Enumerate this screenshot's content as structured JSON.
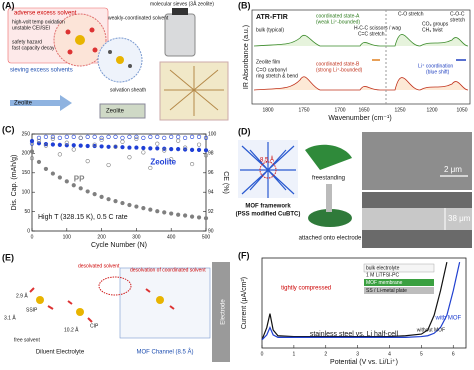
{
  "panels": {
    "a": {
      "label": "(A)",
      "texts": [
        "adverse excess solvent",
        "high-volt temp oxidation",
        "unstable CEI/SEI",
        "safety hazard",
        "fast capacity decay",
        "weakly-coordinated solvent",
        "molecular sieves (3Å zeolite)",
        "solvation sheath",
        "sieving excess solvents",
        "Zeolite",
        "Zeolite"
      ]
    },
    "b": {
      "label": "(B)",
      "texts": [
        "ATR-FTIR",
        "bulk (typical)",
        "coordinated state-A",
        "(weak Li⁺-bounded)",
        "H-C-C scissors / wag",
        "C=C stretch",
        "C-O stretch",
        "CO₃ groups",
        "CH₃ twist",
        "C-O-C",
        "stretch",
        "Zeolite film",
        "C=O carbonyl",
        "ring stretch & bend",
        "coordinated state-B",
        "(strong Li⁺-bounded)",
        "Li⁺ coordination",
        "(blue shift)"
      ],
      "y_label": "IR Absorbance (a.u.)",
      "x_label": "Wavenumber (cm⁻¹)",
      "xticks": [
        1800,
        1750,
        1700,
        1650,
        1250,
        1200,
        1050
      ]
    },
    "d": {
      "label": "(D)",
      "texts": [
        "8.5 Å",
        "freestanding",
        "MOF framework",
        "(PSS modified CuBTC)",
        "attached onto electrode",
        "2 μm",
        "38 μm"
      ]
    },
    "e": {
      "label": "(E)",
      "texts": [
        "desolvated solvent",
        "desolvation of coordinated solvent",
        "SSIP",
        "CIP",
        "free solvent",
        "2.9 Å",
        "3.1 Å",
        "10.2 Å",
        "Diluent Electrolyte",
        "MOF Channel (8.5 Å)",
        "Electrode"
      ]
    }
  },
  "chart_data": [
    {
      "type": "scatter",
      "label": "(C)",
      "x_label": "Cycle Number (N)",
      "y_label": "Dis. Cap. (mAh/g)",
      "y2_label": "CE (%)",
      "annotation": "High T (328.15 K), 0.5 C rate",
      "x": [
        0,
        20,
        40,
        60,
        80,
        100,
        120,
        140,
        160,
        180,
        200,
        220,
        240,
        260,
        280,
        300,
        320,
        340,
        360,
        380,
        400,
        420,
        440,
        460,
        480,
        500
      ],
      "xlim": [
        0,
        500
      ],
      "xticks": [
        0,
        100,
        200,
        300,
        400,
        500
      ],
      "ylim": [
        0,
        250
      ],
      "yticks": [
        0,
        50,
        100,
        150,
        200,
        250
      ],
      "y2lim": [
        90,
        100
      ],
      "y2ticks": [
        90,
        92,
        94,
        96,
        98,
        100
      ],
      "series": [
        {
          "name": "Zeolite",
          "color": "#1f3fd6",
          "marker": "filled",
          "values": [
            232,
            226,
            224,
            223,
            222,
            221,
            221,
            220,
            219,
            219,
            218,
            217,
            217,
            216,
            215,
            215,
            214,
            213,
            213,
            212,
            211,
            211,
            210,
            209,
            209,
            208
          ]
        },
        {
          "name": "PP",
          "color": "#7f7f7f",
          "marker": "filled",
          "values": [
            205,
            178,
            160,
            148,
            138,
            128,
            118,
            110,
            102,
            95,
            88,
            82,
            77,
            72,
            67,
            63,
            59,
            55,
            51,
            48,
            45,
            42,
            40,
            37,
            35,
            33
          ]
        },
        {
          "color": "#1f3fd6",
          "marker": "open",
          "axis": "y2",
          "values": [
            99.0,
            99.6,
            99.7,
            99.7,
            99.6,
            99.7,
            99.7,
            99.6,
            99.7,
            99.7,
            99.6,
            99.7,
            99.7,
            99.6,
            99.7,
            99.7,
            99.6,
            99.7,
            99.7,
            99.6,
            99.7,
            99.7,
            99.6,
            99.7,
            99.7,
            99.6
          ]
        },
        {
          "color": "#7f7f7f",
          "marker": "open",
          "axis": "y2",
          "values": [
            97.5,
            99.3,
            98.8,
            99.5,
            97.9,
            99.1,
            98.4,
            99.6,
            97.2,
            98.9,
            99.4,
            96.8,
            98.7,
            99.2,
            97.6,
            99.5,
            98.1,
            96.5,
            99.0,
            98.3,
            97.4,
            99.3,
            98.6,
            96.9,
            98.9,
            97.8
          ]
        }
      ]
    },
    {
      "type": "line",
      "label": "(F)",
      "x_label": "Potential (V vs. Li/Li⁺)",
      "y_label": "Current (μA/cm²)",
      "annotations": [
        "tightly compressed",
        "stainless steel vs. Li half-cell"
      ],
      "inset": [
        "bulk electrolyte",
        "1 M LiTFSI-PC",
        "MOF membrane",
        "SS / Li-metal plate"
      ],
      "x": [
        0,
        0.15,
        0.25,
        0.35,
        0.5,
        1,
        2,
        3,
        4,
        4.5,
        5,
        5.2,
        5.4,
        5.6,
        5.8,
        6,
        6.2
      ],
      "xlim": [
        0,
        6.4
      ],
      "xticks": [
        0,
        1,
        2,
        3,
        4,
        5,
        6
      ],
      "ylim": [
        -1,
        10
      ],
      "series": [
        {
          "name": "without MOF",
          "color": "#111111",
          "values": [
            0,
            1.5,
            3.2,
            1.2,
            0.5,
            0.4,
            0.4,
            0.4,
            0.4,
            0.5,
            0.7,
            1.2,
            3,
            6,
            9.5,
            null,
            null
          ]
        },
        {
          "name": "with MOF",
          "color": "#2040d0",
          "values": [
            0,
            0.6,
            1.5,
            0.6,
            0.3,
            0.3,
            0.3,
            0.3,
            0.3,
            0.3,
            0.4,
            0.5,
            0.8,
            1.5,
            3,
            6,
            9.5
          ]
        }
      ]
    }
  ]
}
